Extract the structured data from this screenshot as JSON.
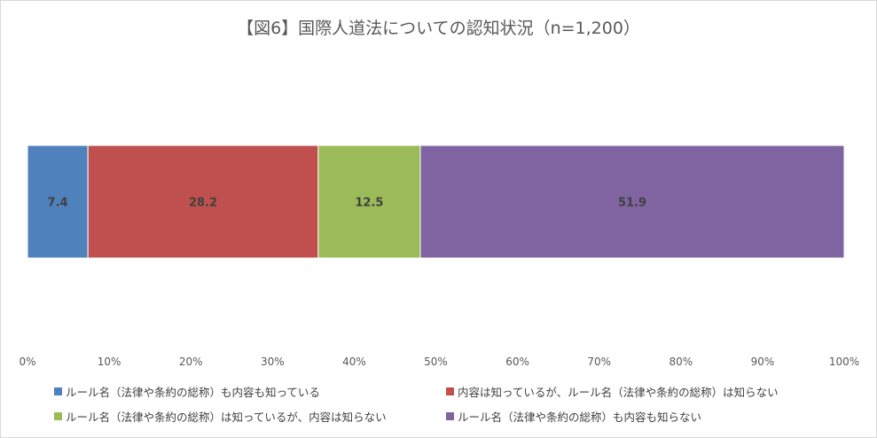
{
  "chart_data": {
    "type": "bar",
    "orientation": "horizontal-stacked-100",
    "title": "【図6】国際人道法についての認知状況（n=1,200）",
    "xlim": [
      0,
      100
    ],
    "x_ticks": [
      "0%",
      "10%",
      "20%",
      "30%",
      "40%",
      "50%",
      "60%",
      "70%",
      "80%",
      "90%",
      "100%"
    ],
    "grid": false,
    "legend_position": "bottom",
    "series": [
      {
        "name": "ルール名（法律や条約の総称）も内容も知っている",
        "values": [
          7.4
        ],
        "label": "7.4",
        "color": "#4f81bd"
      },
      {
        "name": "内容は知っているが、ルール名（法律や条約の総称）は知らない",
        "values": [
          28.2
        ],
        "label": "28.2",
        "color": "#c0504d"
      },
      {
        "name": "ルール名（法律や条約の総称）は知っているが、内容は知らない",
        "values": [
          12.5
        ],
        "label": "12.5",
        "color": "#9bbb59"
      },
      {
        "name": "ルール名（法律や条約の総称）も内容も知らない",
        "values": [
          51.9
        ],
        "label": "51.9",
        "color": "#8064a2"
      }
    ]
  }
}
